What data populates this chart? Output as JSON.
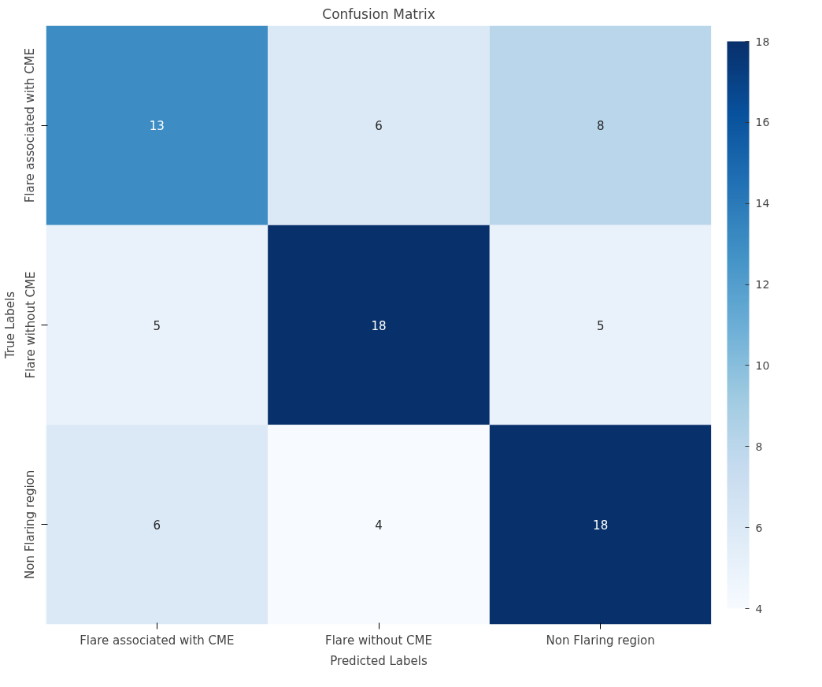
{
  "chart_data": {
    "type": "heatmap",
    "title": "Confusion Matrix",
    "xlabel": "Predicted Labels",
    "ylabel": "True Labels",
    "categories": [
      "Flare associated with CME",
      "Flare without CME",
      "Non Flaring region"
    ],
    "y_categories": [
      "Flare associated with CME",
      "Flare without CME",
      "Non Flaring region"
    ],
    "cells": [
      [
        13,
        6,
        8
      ],
      [
        5,
        18,
        5
      ],
      [
        6,
        4,
        18
      ]
    ],
    "clim": [
      4,
      18
    ],
    "cticks": [
      4,
      6,
      8,
      10,
      12,
      14,
      16,
      18
    ],
    "data_labels": true
  }
}
